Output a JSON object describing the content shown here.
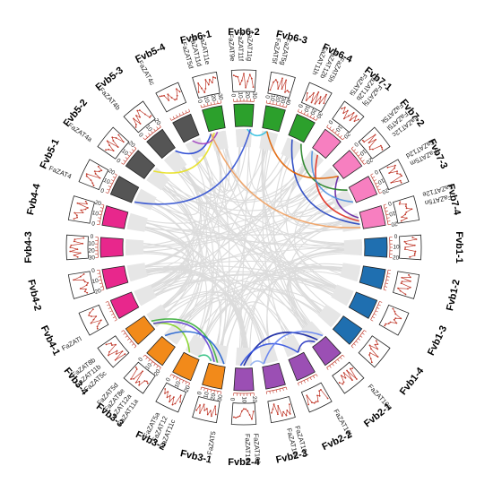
{
  "chromosomes": [
    {
      "id": "Fvb1-1",
      "color": "#1f6fb0",
      "ticks": [
        "0",
        "10",
        "20"
      ]
    },
    {
      "id": "Fvb1-2",
      "color": "#1f6fb0",
      "ticks": []
    },
    {
      "id": "Fvb1-3",
      "color": "#1f6fb0",
      "ticks": []
    },
    {
      "id": "Fvb1-4",
      "color": "#1f6fb0",
      "ticks": []
    },
    {
      "id": "Fvb2-1",
      "color": "#9b4fb4",
      "ticks": []
    },
    {
      "id": "Fvb2-2",
      "color": "#9b4fb4",
      "ticks": []
    },
    {
      "id": "Fvb2-3",
      "color": "#9b4fb4",
      "ticks": []
    },
    {
      "id": "Fvb2-4",
      "color": "#9b4fb4",
      "ticks": [
        "20",
        "10",
        "0"
      ]
    },
    {
      "id": "Fvb3-1",
      "color": "#f28a1a",
      "ticks": [
        "30",
        "20",
        "10",
        "0"
      ]
    },
    {
      "id": "Fvb3-2",
      "color": "#f28a1a",
      "ticks": [
        "20",
        "10",
        "0"
      ]
    },
    {
      "id": "Fvb3-3",
      "color": "#f28a1a",
      "ticks": [
        "20",
        "10",
        "0"
      ]
    },
    {
      "id": "Fvb3-4",
      "color": "#f28a1a",
      "ticks": []
    },
    {
      "id": "Fvb4-1",
      "color": "#e8278c",
      "ticks": []
    },
    {
      "id": "Fvb4-2",
      "color": "#e8278c",
      "ticks": [
        "20",
        "10",
        "0"
      ]
    },
    {
      "id": "Fvb4-3",
      "color": "#e8278c",
      "ticks": [
        "30",
        "20",
        "10",
        "0"
      ]
    },
    {
      "id": "Fvb4-4",
      "color": "#e8278c",
      "ticks": [
        "0",
        "10",
        "20"
      ]
    },
    {
      "id": "Fvb5-1",
      "color": "#555555",
      "ticks": [
        "0",
        "10",
        "20"
      ]
    },
    {
      "id": "Fvb5-2",
      "color": "#555555",
      "ticks": [
        "0",
        "10",
        "20"
      ]
    },
    {
      "id": "Fvb5-3",
      "color": "#555555",
      "ticks": [
        "0",
        "10",
        "20"
      ]
    },
    {
      "id": "Fvb5-4",
      "color": "#555555",
      "ticks": []
    },
    {
      "id": "Fvb6-1",
      "color": "#2ca02c",
      "ticks": [
        "0",
        "10",
        "20",
        "30"
      ]
    },
    {
      "id": "Fvb6-2",
      "color": "#2ca02c",
      "ticks": [
        "0",
        "10",
        "20",
        "30"
      ]
    },
    {
      "id": "Fvb6-3",
      "color": "#2ca02c",
      "ticks": [
        "0",
        "10",
        "20",
        "30",
        "40"
      ]
    },
    {
      "id": "Fvb6-4",
      "color": "#2ca02c",
      "ticks": [
        "0",
        "10",
        "20",
        "30"
      ]
    },
    {
      "id": "Fvb7-1",
      "color": "#f77fc0",
      "ticks": [
        "0",
        "10",
        "20"
      ]
    },
    {
      "id": "Fvb7-2",
      "color": "#f77fc0",
      "ticks": [
        "0",
        "10",
        "20"
      ]
    },
    {
      "id": "Fvb7-3",
      "color": "#f77fc0",
      "ticks": [
        "0",
        "10",
        "20"
      ]
    },
    {
      "id": "Fvb7-4",
      "color": "#f77fc0",
      "ticks": [
        "0",
        "10",
        "20"
      ]
    }
  ],
  "genes": [
    {
      "name": "FaZAT11a",
      "chrom": "Fvb3-3"
    },
    {
      "name": "FaZAT12a",
      "chrom": "Fvb3-3"
    },
    {
      "name": "FaZAT8e",
      "chrom": "Fvb3-3"
    },
    {
      "name": "FaZAT5d",
      "chrom": "Fvb3-3"
    },
    {
      "name": "FaZAT11c",
      "chrom": "Fvb3-2"
    },
    {
      "name": "FaZAT12",
      "chrom": "Fvb3-2"
    },
    {
      "name": "FaZAT5a",
      "chrom": "Fvb3-2"
    },
    {
      "name": "FaZAT5",
      "chrom": "Fvb3-1"
    },
    {
      "name": "FaZAT5c",
      "chrom": "Fvb3-4"
    },
    {
      "name": "FaZAT11b",
      "chrom": "Fvb3-4"
    },
    {
      "name": "FaZAT8b",
      "chrom": "Fvb3-4"
    },
    {
      "name": "FaZATl",
      "chrom": "Fvb4-1"
    },
    {
      "name": "FaZAT4",
      "chrom": "Fvb5-1"
    },
    {
      "name": "FaZAT4a",
      "chrom": "Fvb5-2"
    },
    {
      "name": "FaZAT4b",
      "chrom": "Fvb5-3"
    },
    {
      "name": "FaZAT4c",
      "chrom": "Fvb5-4"
    },
    {
      "name": "FaZAT5d",
      "chrom": "Fvb6-1"
    },
    {
      "name": "FaZAT11d",
      "chrom": "Fvb6-1"
    },
    {
      "name": "FaZAT11e",
      "chrom": "Fvb6-1"
    },
    {
      "name": "FaZAT9e",
      "chrom": "Fvb6-2"
    },
    {
      "name": "FaZAT11f",
      "chrom": "Fvb6-2"
    },
    {
      "name": "FaZAT11g",
      "chrom": "Fvb6-2"
    },
    {
      "name": "FaZAT5f",
      "chrom": "Fvb6-3"
    },
    {
      "name": "FaZAT5g",
      "chrom": "Fvb6-3"
    },
    {
      "name": "FaZAT11h",
      "chrom": "Fvb6-4"
    },
    {
      "name": "FaZAT12b",
      "chrom": "Fvb6-4"
    },
    {
      "name": "FaZAT5h",
      "chrom": "Fvb6-4"
    },
    {
      "name": "FaZAT5i",
      "chrom": "Fvb7-1"
    },
    {
      "name": "FaZAT12b",
      "chrom": "Fvb7-1"
    },
    {
      "name": "FaZAT5j",
      "chrom": "Fvb7-1"
    },
    {
      "name": "FaZAT5k",
      "chrom": "Fvb7-2"
    },
    {
      "name": "FaZAT5l",
      "chrom": "Fvb7-2"
    },
    {
      "name": "FaZAT12c",
      "chrom": "Fvb7-2"
    },
    {
      "name": "FaZAT12d",
      "chrom": "Fvb7-3"
    },
    {
      "name": "FaZAT5m",
      "chrom": "Fvb7-3"
    },
    {
      "name": "FaZAT12e",
      "chrom": "Fvb7-4"
    },
    {
      "name": "FaZAT5n",
      "chrom": "Fvb7-4"
    },
    {
      "name": "FaZAT10f",
      "chrom": "Fvb2-4"
    },
    {
      "name": "FaZAT10e",
      "chrom": "Fvb2-4"
    },
    {
      "name": "FaZAT10d",
      "chrom": "Fvb2-3"
    },
    {
      "name": "FaZAT10c",
      "chrom": "Fvb2-3"
    },
    {
      "name": "FaZAT10b",
      "chrom": "Fvb2-2"
    },
    {
      "name": "FaZAT10a",
      "chrom": "Fvb2-1"
    }
  ],
  "links": [
    {
      "from": "Fvb6-1",
      "to": "Fvb5-3",
      "color": "#1f3fd0"
    },
    {
      "from": "Fvb6-1",
      "to": "Fvb5-2",
      "color": "#e8e020"
    },
    {
      "from": "Fvb6-1",
      "to": "Fvb5-4",
      "color": "#a040c0"
    },
    {
      "from": "Fvb6-2",
      "to": "Fvb6-3",
      "color": "#30c0e0"
    },
    {
      "from": "Fvb6-2",
      "to": "Fvb5-1",
      "color": "#3050d0"
    },
    {
      "from": "Fvb6-1",
      "to": "Fvb7-4",
      "color": "#f0a060"
    },
    {
      "from": "Fvb6-4",
      "to": "Fvb7-4",
      "color": "#2040c0"
    },
    {
      "from": "Fvb7-1",
      "to": "Fvb7-4",
      "color": "#e03020"
    },
    {
      "from": "Fvb7-2",
      "to": "Fvb7-4",
      "color": "#6020a0"
    },
    {
      "from": "Fvb6-4",
      "to": "Fvb7-3",
      "color": "#208020"
    },
    {
      "from": "Fvb7-1",
      "to": "Fvb7-3",
      "color": "#5090e0"
    },
    {
      "from": "Fvb6-3",
      "to": "Fvb7-2",
      "color": "#e06000"
    },
    {
      "from": "Fvb3-1",
      "to": "Fvb3-4",
      "color": "#40b040"
    },
    {
      "from": "Fvb3-2",
      "to": "Fvb3-4",
      "color": "#80d020"
    },
    {
      "from": "Fvb3-3",
      "to": "Fvb3-1",
      "color": "#2060d0"
    },
    {
      "from": "Fvb3-2",
      "to": "Fvb3-1",
      "color": "#30c080"
    },
    {
      "from": "Fvb3-4",
      "to": "Fvb3-1",
      "color": "#6040d0"
    },
    {
      "from": "Fvb2-4",
      "to": "Fvb2-1",
      "color": "#1020a0"
    },
    {
      "from": "Fvb2-4",
      "to": "Fvb2-2",
      "color": "#3050e0"
    },
    {
      "from": "Fvb2-3",
      "to": "Fvb2-1",
      "color": "#6080f0"
    },
    {
      "from": "Fvb2-4",
      "to": "Fvb2-3",
      "color": "#90b0f0"
    },
    {
      "from": "Fvb2-2",
      "to": "Fvb2-1",
      "color": "#2030c0"
    }
  ],
  "colors": {
    "background_links": "#dcdcdc",
    "plot_line": "#c0392b",
    "track_border": "#222222"
  }
}
